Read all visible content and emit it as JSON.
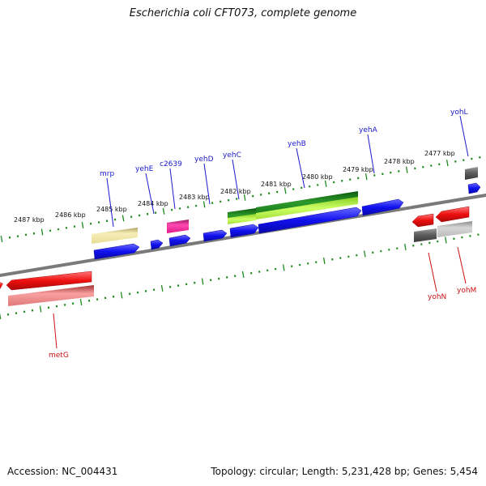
{
  "title": "Escherichia coli CFT073, complete genome",
  "footer": {
    "accession": "Accession: NC_004431",
    "summary": "Topology: circular; Length: 5,231,428 bp; Genes: 5,454"
  },
  "ruler_labels": [
    "2487 kbp",
    "2486 kbp",
    "2485 kbp",
    "2484 kbp",
    "2483 kbp",
    "2482 kbp",
    "2481 kbp",
    "2480 kbp",
    "2479 kbp",
    "2478 kbp",
    "2477 kbp"
  ],
  "gene_labels": [
    "mrp",
    "yehE",
    "c2639",
    "yehD",
    "yehC",
    "yehB",
    "yehA",
    "yohL",
    "yohN",
    "yohM",
    "metG"
  ],
  "colors": {
    "backbone": "#7a7a7a",
    "tick": "#1e8a1e",
    "forward_label": "#1a1acc",
    "reverse_label": "#cc1111",
    "cds_blue": "#1010ee",
    "cds_red": "#ee1010",
    "pseudo_khaki": "#efe4a0",
    "pseudo_magenta": "#ee2a9a",
    "green_dark": "#238a23",
    "green_light": "#bbee55",
    "grey_dark": "#5a5a5a",
    "grey_light": "#c4c4c4",
    "pink_light": "#ee8a8a"
  }
}
